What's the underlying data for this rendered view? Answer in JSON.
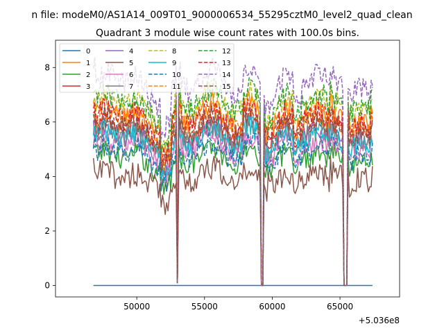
{
  "chart_data": {
    "type": "line",
    "suptitle": "n file: modeM0/AS1A14_009T01_9000006534_55295cztM0_level2_quad_clean",
    "title": "Quadrant 3 module wise count rates with 100.0s bins.",
    "xlabel": "",
    "ylabel": "",
    "x_offset_label": "+5.036e8",
    "xlim": [
      44000,
      69400
    ],
    "ylim": [
      -0.42,
      9.0
    ],
    "x_ticks": [
      50000,
      55000,
      60000,
      65000
    ],
    "x_tick_labels": [
      "50000",
      "55000",
      "60000",
      "65000"
    ],
    "y_ticks": [
      0,
      2,
      4,
      6,
      8
    ],
    "y_tick_labels": [
      "0",
      "2",
      "4",
      "6",
      "8"
    ],
    "legend_location": "upper-left",
    "legend_columns": 4,
    "x_start": 46800,
    "x_end": 67400,
    "bin_width": 100,
    "segments": [
      [
        46800,
        52950
      ],
      [
        53100,
        59100
      ],
      [
        59350,
        65250
      ],
      [
        65550,
        67400
      ]
    ],
    "series": [
      {
        "name": "0",
        "color": "#1f77b4",
        "dash": "solid",
        "base": 0.0,
        "noise": 0.0
      },
      {
        "name": "1",
        "color": "#ff7f0e",
        "dash": "solid",
        "base": 6.1,
        "noise": 0.3
      },
      {
        "name": "2",
        "color": "#2ca02c",
        "dash": "solid",
        "base": 4.6,
        "noise": 0.3
      },
      {
        "name": "3",
        "color": "#d62728",
        "dash": "solid",
        "base": 5.6,
        "noise": 0.3
      },
      {
        "name": "4",
        "color": "#9467bd",
        "dash": "solid",
        "base": 5.3,
        "noise": 0.3
      },
      {
        "name": "5",
        "color": "#8c564b",
        "dash": "solid",
        "base": 3.9,
        "noise": 0.35
      },
      {
        "name": "6",
        "color": "#e377c2",
        "dash": "solid",
        "base": 5.0,
        "noise": 0.3
      },
      {
        "name": "7",
        "color": "#7f7f7f",
        "dash": "solid",
        "base": 5.4,
        "noise": 0.3
      },
      {
        "name": "8",
        "color": "#bcbd22",
        "dash": "dashed",
        "base": 6.5,
        "noise": 0.3
      },
      {
        "name": "9",
        "color": "#17becf",
        "dash": "solid",
        "base": 5.3,
        "noise": 0.3
      },
      {
        "name": "10",
        "color": "#1f77b4",
        "dash": "dashed",
        "base": 4.8,
        "noise": 0.3
      },
      {
        "name": "11",
        "color": "#ff7f0e",
        "dash": "dashed",
        "base": 5.9,
        "noise": 0.3
      },
      {
        "name": "12",
        "color": "#2ca02c",
        "dash": "dashed",
        "base": 6.6,
        "noise": 0.3
      },
      {
        "name": "13",
        "color": "#d62728",
        "dash": "dashed",
        "base": 6.0,
        "noise": 0.3
      },
      {
        "name": "14",
        "color": "#9467bd",
        "dash": "dashed",
        "base": 7.3,
        "noise": 0.3
      },
      {
        "name": "15",
        "color": "#8c564b",
        "dash": "dashed",
        "base": 5.7,
        "noise": 0.3
      }
    ]
  }
}
